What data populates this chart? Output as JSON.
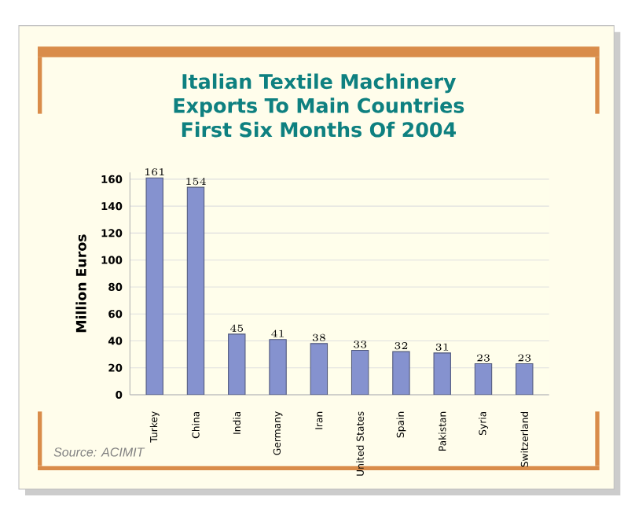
{
  "chart_data": {
    "type": "bar",
    "title": "Italian Textile Machinery Exports To Main Countries First Six Months Of 2004",
    "ylabel": "Million Euros",
    "categories": [
      "Turkey",
      "China",
      "India",
      "Germany",
      "Iran",
      "United States",
      "Spain",
      "Pakistan",
      "Syria",
      "Switzerland"
    ],
    "values": [
      161,
      154,
      45,
      41,
      38,
      33,
      32,
      31,
      23,
      23
    ],
    "color": "#8592cf",
    "ylim": [
      0,
      165
    ],
    "yticks": [
      0,
      20,
      40,
      60,
      80,
      100,
      120,
      140,
      160
    ],
    "grid": "y",
    "data_labels": true,
    "annotations": [
      "Source: ACIMIT"
    ]
  }
}
